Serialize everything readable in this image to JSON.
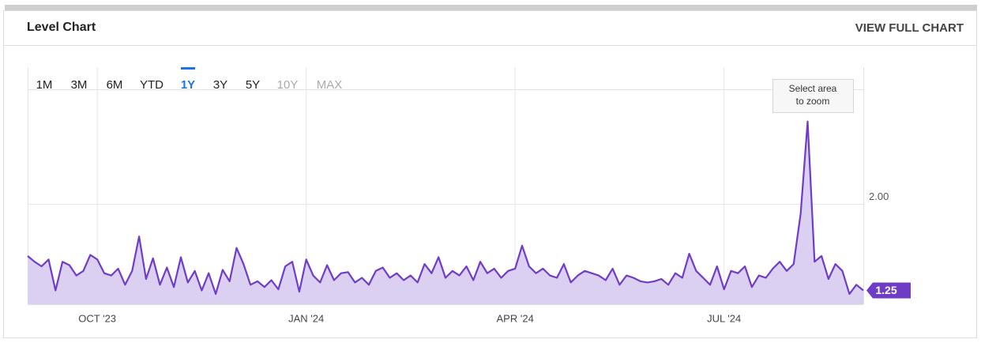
{
  "header": {
    "title": "Level Chart",
    "link": "VIEW FULL CHART"
  },
  "chart_data": {
    "type": "area",
    "range_buttons": [
      "1M",
      "3M",
      "6M",
      "YTD",
      "1Y",
      "3Y",
      "5Y",
      "10Y",
      "MAX"
    ],
    "active_range_index": 4,
    "disabled_range_indices": [
      7,
      8
    ],
    "zoom_hint": [
      "Select area",
      "to zoom"
    ],
    "color": "#6f3cc8",
    "area_color": "#dcd0f2",
    "values": [
      1.55,
      1.5,
      1.46,
      1.52,
      1.25,
      1.5,
      1.47,
      1.38,
      1.42,
      1.56,
      1.52,
      1.4,
      1.38,
      1.44,
      1.3,
      1.42,
      1.72,
      1.35,
      1.53,
      1.3,
      1.45,
      1.28,
      1.54,
      1.32,
      1.42,
      1.25,
      1.4,
      1.22,
      1.43,
      1.33,
      1.62,
      1.48,
      1.3,
      1.33,
      1.28,
      1.34,
      1.26,
      1.46,
      1.5,
      1.24,
      1.52,
      1.38,
      1.32,
      1.47,
      1.34,
      1.4,
      1.41,
      1.32,
      1.36,
      1.3,
      1.42,
      1.45,
      1.36,
      1.4,
      1.34,
      1.38,
      1.32,
      1.48,
      1.4,
      1.54,
      1.36,
      1.42,
      1.38,
      1.46,
      1.34,
      1.5,
      1.4,
      1.44,
      1.36,
      1.42,
      1.44,
      1.64,
      1.46,
      1.4,
      1.44,
      1.38,
      1.36,
      1.48,
      1.32,
      1.38,
      1.42,
      1.4,
      1.38,
      1.34,
      1.44,
      1.3,
      1.38,
      1.36,
      1.33,
      1.32,
      1.33,
      1.35,
      1.3,
      1.4,
      1.36,
      1.57,
      1.42,
      1.36,
      1.3,
      1.46,
      1.26,
      1.42,
      1.4,
      1.46,
      1.28,
      1.38,
      1.36,
      1.44,
      1.5,
      1.42,
      1.48,
      1.92,
      2.72,
      1.5,
      1.55,
      1.35,
      1.48,
      1.42,
      1.22,
      1.3,
      1.25
    ],
    "xlim": [
      0,
      120
    ],
    "xticks": [
      {
        "value": 10,
        "label": "OCT '23"
      },
      {
        "value": 40,
        "label": "JAN '24"
      },
      {
        "value": 70,
        "label": "APR '24"
      },
      {
        "value": 100,
        "label": "JUL '24"
      }
    ],
    "ylim": [
      1.13,
      3.0
    ],
    "yticks": [
      {
        "value": 2,
        "label": "2.00"
      }
    ],
    "grid": true
  }
}
